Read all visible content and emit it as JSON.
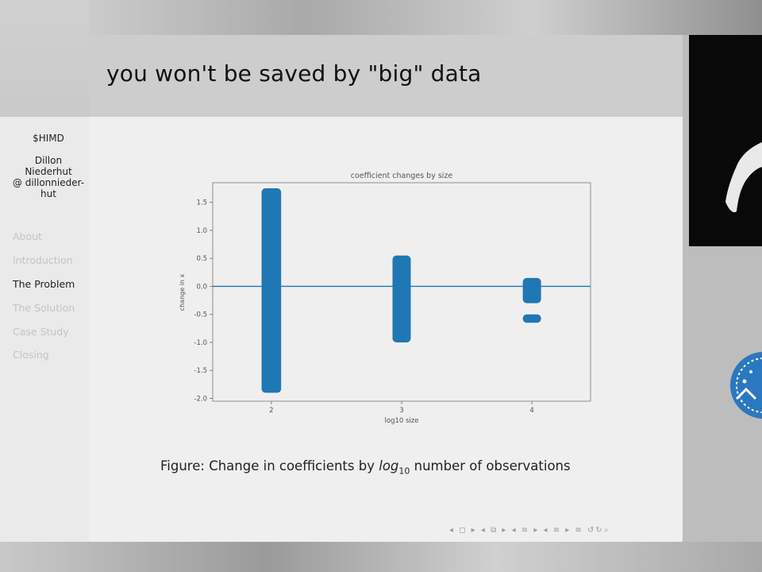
{
  "slide": {
    "title": "you won't be saved by \"big\" data"
  },
  "sidebar": {
    "short_title": "$HIMD",
    "author_line1": "Dillon",
    "author_line2": "Niederhut",
    "author_line3": "@ dillonnieder-",
    "author_line4": "hut",
    "nav": [
      {
        "label": "About",
        "active": false
      },
      {
        "label": "Introduction",
        "active": false
      },
      {
        "label": "The Problem",
        "active": true
      },
      {
        "label": "The Solution",
        "active": false
      },
      {
        "label": "Case Study",
        "active": false
      },
      {
        "label": "Closing",
        "active": false
      }
    ]
  },
  "figure": {
    "caption_prefix": "Figure:",
    "caption_text": "Change in coefficients by",
    "caption_log": "log",
    "caption_sub": "10",
    "caption_suffix": "number of observations"
  },
  "beamer_nav": {
    "symbols": "◂ ◻ ▸  ◂ ⧉ ▸  ◂ ≡ ▸  ◂ ≡ ▸   ≡   ↺↻⌕"
  },
  "colors": {
    "series": "#1f77b4",
    "slide_bg": "#efefef",
    "header_bg": "#cdcdcd"
  },
  "chart_data": {
    "type": "scatter",
    "title": "coefficient changes by size",
    "xlabel": "log10 size",
    "ylabel": "change in x",
    "xlim": [
      1.55,
      4.45
    ],
    "ylim": [
      -2.05,
      1.85
    ],
    "x_ticks": [
      "2",
      "3",
      "4"
    ],
    "y_ticks": [
      "1.5",
      "1.0",
      "0.5",
      "0.0",
      "-0.5",
      "-1.0",
      "-1.5",
      "-2.0"
    ],
    "reference_line_y": 0.0,
    "grid": false,
    "series": [
      {
        "x": 2,
        "ranges": [
          [
            -1.9,
            1.75
          ]
        ]
      },
      {
        "x": 3,
        "ranges": [
          [
            -1.0,
            0.55
          ]
        ]
      },
      {
        "x": 4,
        "ranges": [
          [
            -0.3,
            0.15
          ],
          [
            -0.65,
            -0.5
          ]
        ]
      }
    ]
  }
}
